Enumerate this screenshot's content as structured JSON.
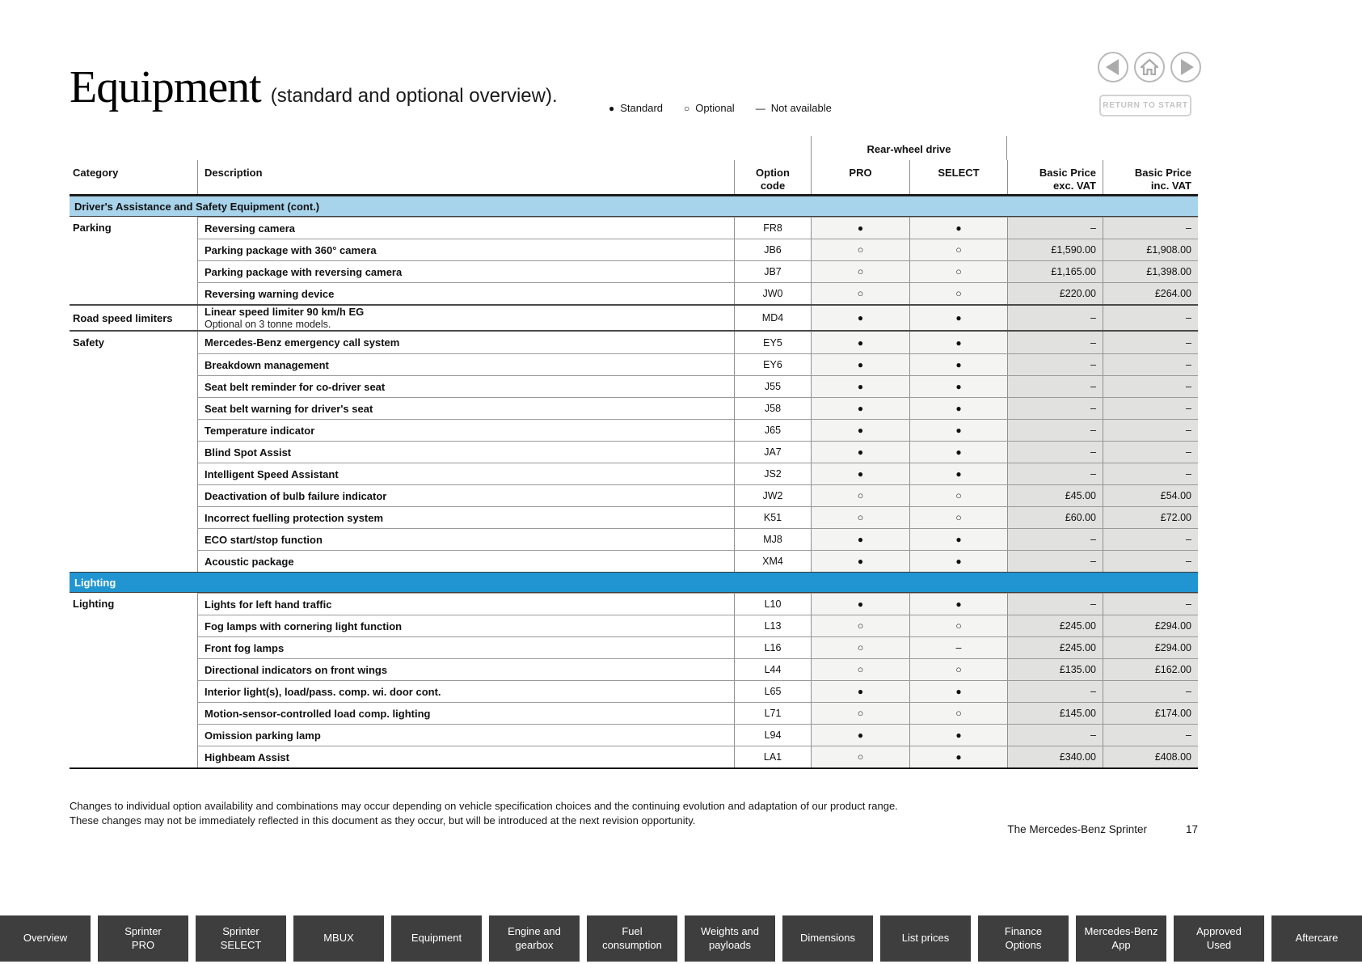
{
  "page": {
    "title": "Equipment",
    "subtitle": "(standard and optional overview).",
    "legend": {
      "items": [
        {
          "symbol": "std",
          "label": "Standard"
        },
        {
          "symbol": "opt",
          "label": "Optional"
        },
        {
          "symbol": "na",
          "label": "Not available"
        }
      ]
    },
    "nav": {
      "return_label": "RETURN TO START"
    },
    "footer": {
      "line1": "Changes to individual option availability and combinations may occur depending on vehicle specification choices and the continuing evolution and adaptation of our product range.",
      "line2": "These changes may not be immediately reflected in this document as they occur, but will be introduced at the next revision opportunity.",
      "doc_title": "The Mercedes-Benz Sprinter",
      "page_number": "17"
    }
  },
  "colors": {
    "section_light_bg": "#a7d3eb",
    "section_light_text": "#111111",
    "section_dark_bg": "#2095d2",
    "section_dark_text": "#ffffff",
    "tab_bg": "#3e3e3e"
  },
  "table": {
    "headers": {
      "category": "Category",
      "description": "Description",
      "option_code": "Option\ncode",
      "drive_group": "Rear-wheel drive",
      "pro": "PRO",
      "select": "SELECT",
      "price_exc": "Basic Price\nexc. VAT",
      "price_inc": "Basic Price\ninc. VAT"
    },
    "sections": [
      {
        "label": "Driver's Assistance and Safety Equipment (cont.)",
        "variant": "light",
        "rows": [
          {
            "category": "Parking",
            "description": "Reversing camera",
            "code": "FR8",
            "pro": "std",
            "select": "std",
            "exc": "–",
            "inc": "–"
          },
          {
            "category": "",
            "description": "Parking package with 360° camera",
            "code": "JB6",
            "pro": "opt",
            "select": "opt",
            "exc": "£1,590.00",
            "inc": "£1,908.00"
          },
          {
            "category": "",
            "description": "Parking package with reversing camera",
            "code": "JB7",
            "pro": "opt",
            "select": "opt",
            "exc": "£1,165.00",
            "inc": "£1,398.00"
          },
          {
            "category": "",
            "description": "Reversing warning device",
            "code": "JW0",
            "pro": "opt",
            "select": "opt",
            "exc": "£220.00",
            "inc": "£264.00"
          },
          {
            "category": "Road speed limiters",
            "description": "Linear speed limiter 90 km/h EG",
            "note": "Optional on 3 tonne models.",
            "code": "MD4",
            "pro": "std",
            "select": "std",
            "exc": "–",
            "inc": "–"
          },
          {
            "category": "Safety",
            "description": "Mercedes-Benz emergency call system",
            "code": "EY5",
            "pro": "std",
            "select": "std",
            "exc": "–",
            "inc": "–"
          },
          {
            "category": "",
            "description": "Breakdown management",
            "code": "EY6",
            "pro": "std",
            "select": "std",
            "exc": "–",
            "inc": "–"
          },
          {
            "category": "",
            "description": "Seat belt reminder for co-driver seat",
            "code": "J55",
            "pro": "std",
            "select": "std",
            "exc": "–",
            "inc": "–"
          },
          {
            "category": "",
            "description": "Seat belt warning for driver's seat",
            "code": "J58",
            "pro": "std",
            "select": "std",
            "exc": "–",
            "inc": "–"
          },
          {
            "category": "",
            "description": "Temperature indicator",
            "code": "J65",
            "pro": "std",
            "select": "std",
            "exc": "–",
            "inc": "–"
          },
          {
            "category": "",
            "description": "Blind Spot Assist",
            "code": "JA7",
            "pro": "std",
            "select": "std",
            "exc": "–",
            "inc": "–"
          },
          {
            "category": "",
            "description": "Intelligent Speed Assistant",
            "code": "JS2",
            "pro": "std",
            "select": "std",
            "exc": "–",
            "inc": "–"
          },
          {
            "category": "",
            "description": "Deactivation of bulb failure indicator",
            "code": "JW2",
            "pro": "opt",
            "select": "opt",
            "exc": "£45.00",
            "inc": "£54.00"
          },
          {
            "category": "",
            "description": "Incorrect fuelling protection system",
            "code": "K51",
            "pro": "opt",
            "select": "opt",
            "exc": "£60.00",
            "inc": "£72.00"
          },
          {
            "category": "",
            "description": "ECO start/stop function",
            "code": "MJ8",
            "pro": "std",
            "select": "std",
            "exc": "–",
            "inc": "–"
          },
          {
            "category": "",
            "description": "Acoustic package",
            "code": "XM4",
            "pro": "std",
            "select": "std",
            "exc": "–",
            "inc": "–"
          }
        ]
      },
      {
        "label": "Lighting",
        "variant": "dark",
        "rows": [
          {
            "category": "Lighting",
            "description": "Lights for left hand traffic",
            "code": "L10",
            "pro": "std",
            "select": "std",
            "exc": "–",
            "inc": "–"
          },
          {
            "category": "",
            "description": "Fog lamps with cornering light function",
            "code": "L13",
            "pro": "opt",
            "select": "opt",
            "exc": "£245.00",
            "inc": "£294.00"
          },
          {
            "category": "",
            "description": "Front fog lamps",
            "code": "L16",
            "pro": "opt",
            "select": "na",
            "exc": "£245.00",
            "inc": "£294.00"
          },
          {
            "category": "",
            "description": "Directional indicators on front wings",
            "code": "L44",
            "pro": "opt",
            "select": "opt",
            "exc": "£135.00",
            "inc": "£162.00"
          },
          {
            "category": "",
            "description": "Interior light(s), load/pass. comp. wi. door cont.",
            "code": "L65",
            "pro": "std",
            "select": "std",
            "exc": "–",
            "inc": "–"
          },
          {
            "category": "",
            "description": "Motion-sensor-controlled load comp. lighting",
            "code": "L71",
            "pro": "opt",
            "select": "opt",
            "exc": "£145.00",
            "inc": "£174.00"
          },
          {
            "category": "",
            "description": "Omission parking lamp",
            "code": "L94",
            "pro": "std",
            "select": "std",
            "exc": "–",
            "inc": "–"
          },
          {
            "category": "",
            "description": "Highbeam Assist",
            "code": "LA1",
            "pro": "opt",
            "select": "std",
            "exc": "£340.00",
            "inc": "£408.00"
          }
        ]
      }
    ]
  },
  "bottom_tabs": [
    "Overview",
    "Sprinter\nPRO",
    "Sprinter\nSELECT",
    "MBUX",
    "Equipment",
    "Engine and\ngearbox",
    "Fuel\nconsumption",
    "Weights and\npayloads",
    "Dimensions",
    "List prices",
    "Finance\nOptions",
    "Mercedes-Benz\nApp",
    "Approved\nUsed",
    "Aftercare"
  ]
}
